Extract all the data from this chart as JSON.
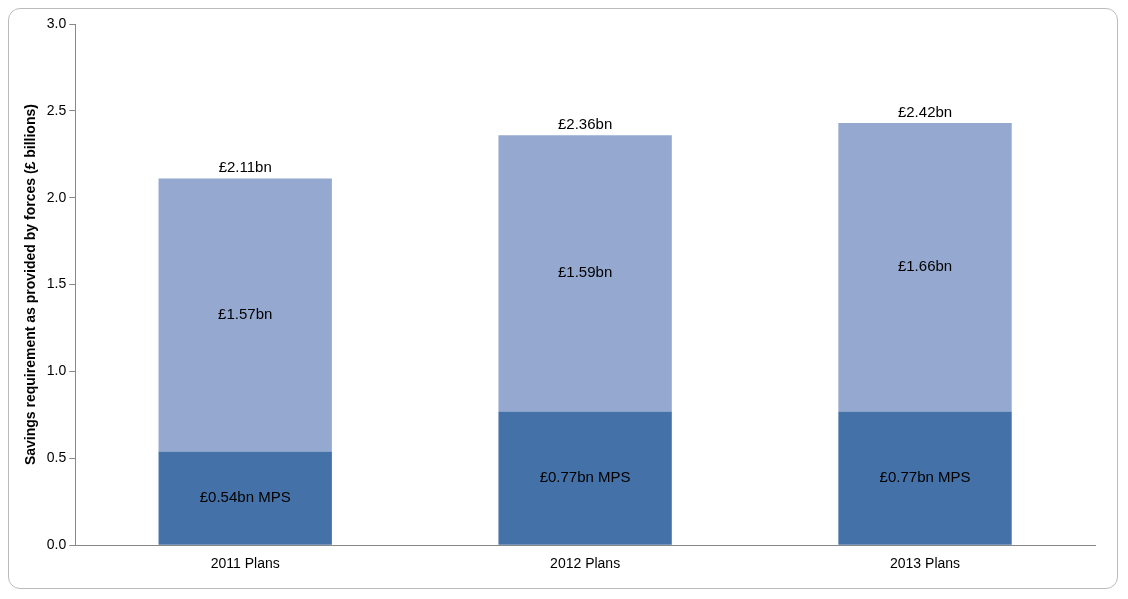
{
  "chart_data": {
    "type": "bar",
    "stacked": true,
    "ylabel": "Savings requirement as provided by forces (£ billions)",
    "categories": [
      "2011 Plans",
      "2012 Plans",
      "2013 Plans"
    ],
    "series": [
      {
        "color": "#4472a8",
        "values": [
          0.54,
          0.77,
          0.77
        ],
        "value_labels": [
          "£0.54bn MPS",
          "£0.77bn MPS",
          "£0.77bn MPS"
        ]
      },
      {
        "color": "#95a9d0",
        "values": [
          1.57,
          1.59,
          1.66
        ],
        "value_labels": [
          "£1.57bn",
          "£1.59bn",
          "£1.66bn"
        ]
      }
    ],
    "totals": [
      "£2.11bn",
      "£2.36bn",
      "£2.42bn"
    ],
    "ylim": [
      0,
      3
    ],
    "yticks": [
      {
        "value": 0,
        "label": "0.0"
      },
      {
        "value": 0.5,
        "label": "0.5"
      },
      {
        "value": 1,
        "label": "1.0"
      },
      {
        "value": 1.5,
        "label": "1.5"
      },
      {
        "value": 2,
        "label": "2.0"
      },
      {
        "value": 2.5,
        "label": "2.5"
      },
      {
        "value": 3,
        "label": "3.0"
      }
    ],
    "grid": false,
    "legend": false
  }
}
